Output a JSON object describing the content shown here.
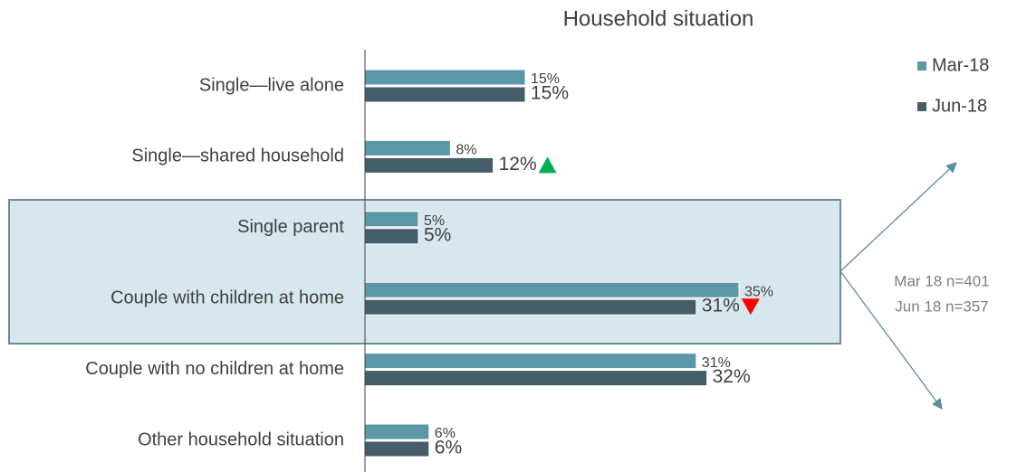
{
  "chart_data": {
    "type": "hbar",
    "title": "Household situation",
    "categories": [
      "Single—live alone",
      "Single—shared household",
      "Single parent",
      "Couple with children at home",
      "Couple with no children at home",
      "Other household situation"
    ],
    "series": [
      {
        "name": "Mar-18",
        "color": "#5b97a6",
        "values": [
          15,
          8,
          5,
          35,
          31,
          6
        ],
        "value_labels": [
          "15%",
          "8%",
          "5%",
          "35%",
          "31%",
          "6%"
        ]
      },
      {
        "name": "Jun-18",
        "color": "#455d69",
        "values": [
          15,
          12,
          5,
          31,
          32,
          6
        ],
        "value_labels": [
          "15%",
          "12%",
          "5%",
          "31%",
          "32%",
          "6%"
        ],
        "significance": [
          null,
          "up",
          null,
          "down",
          null,
          null
        ]
      }
    ],
    "xlim": [
      0,
      40
    ],
    "annotations": [
      "Mar 18 n=401",
      "Jun 18 n=357"
    ]
  }
}
